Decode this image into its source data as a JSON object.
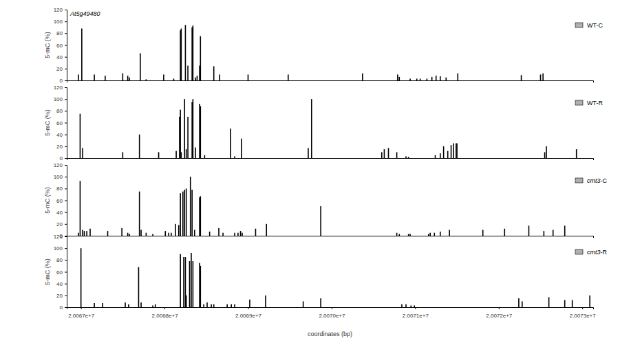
{
  "chart_data": [
    {
      "type": "bar",
      "annotation": "At5g49480",
      "ylabel": "5-mC (%)",
      "xlim": [
        20066830,
        20073130
      ],
      "ylim": [
        0,
        120
      ],
      "yticks": [
        0,
        20,
        40,
        60,
        80,
        100,
        120
      ],
      "tick_labels": "y",
      "legend": "upper right",
      "x": [
        20066970,
        20067010,
        20067160,
        20067290,
        20067500,
        20067560,
        20067580,
        20067710,
        20067780,
        20067990,
        20068110,
        20068190,
        20068200,
        20068250,
        20068280,
        20068330,
        20068340,
        20068370,
        20068390,
        20068420,
        20068430,
        20068590,
        20068660,
        20069000,
        20069480,
        20070370,
        20070790,
        20070810,
        20070940,
        20071020,
        20071060,
        20071140,
        20071200,
        20071250,
        20071300,
        20071370,
        20071510,
        20072270,
        20072500,
        20072530
      ],
      "series": [
        {
          "name": "WT-C",
          "color": "#000000",
          "values": [
            10,
            88,
            10,
            8,
            12,
            8,
            5,
            46,
            2,
            10,
            3,
            85,
            88,
            94,
            25,
            90,
            93,
            5,
            8,
            25,
            75,
            24,
            10,
            10,
            10,
            12,
            10,
            6,
            3,
            3,
            3,
            3,
            6,
            8,
            7,
            5,
            12,
            9,
            10,
            12
          ]
        }
      ]
    },
    {
      "type": "bar",
      "ylabel": "5-mC (%)",
      "xlim": [
        20066830,
        20073130
      ],
      "ylim": [
        0,
        120
      ],
      "yticks": [
        0,
        20,
        40,
        60,
        80,
        100,
        120
      ],
      "tick_labels": "y",
      "legend": "upper right",
      "x": [
        20066990,
        20067020,
        20067500,
        20067700,
        20067930,
        20068140,
        20068180,
        20068190,
        20068200,
        20068240,
        20068260,
        20068280,
        20068330,
        20068340,
        20068370,
        20068420,
        20068430,
        20068480,
        20068790,
        20068840,
        20068920,
        20069720,
        20069760,
        20070600,
        20070630,
        20070680,
        20070780,
        20070890,
        20070920,
        20071240,
        20071300,
        20071340,
        20071390,
        20071430,
        20071460,
        20071490,
        20071500,
        20072550,
        20072570,
        20072930
      ],
      "series": [
        {
          "name": "WT-R",
          "color": "#000000",
          "values": [
            75,
            17,
            10,
            40,
            10,
            12,
            70,
            82,
            10,
            100,
            15,
            70,
            95,
            100,
            18,
            92,
            88,
            5,
            50,
            3,
            33,
            17,
            100,
            10,
            15,
            17,
            10,
            3,
            2,
            5,
            8,
            20,
            12,
            22,
            25,
            25,
            25,
            10,
            20,
            15
          ]
        }
      ]
    },
    {
      "type": "bar",
      "ylabel": "5-mC (%)",
      "xlim": [
        20066830,
        20073130
      ],
      "ylim": [
        0,
        120
      ],
      "yticks": [
        0,
        20,
        40,
        60,
        80,
        100,
        120
      ],
      "tick_labels": "y",
      "legend": "upper right",
      "x": [
        20066970,
        20066990,
        20067020,
        20067040,
        20067070,
        20067110,
        20067320,
        20067490,
        20067560,
        20067580,
        20067700,
        20067720,
        20067780,
        20067860,
        20068010,
        20068050,
        20068080,
        20068130,
        20068170,
        20068190,
        20068220,
        20068240,
        20068260,
        20068310,
        20068330,
        20068360,
        20068420,
        20068430,
        20068540,
        20068650,
        20068700,
        20068840,
        20068880,
        20068910,
        20068930,
        20069090,
        20069220,
        20069870,
        20070780,
        20070810,
        20070920,
        20070940,
        20071160,
        20071180,
        20071230,
        20071300,
        20071410,
        20071810,
        20072070,
        20072360,
        20072540,
        20072650,
        20072790
      ],
      "series": [
        {
          "name": "cmt3-C",
          "color": "#000000",
          "values": [
            5,
            93,
            10,
            8,
            8,
            12,
            8,
            13,
            5,
            3,
            75,
            10,
            5,
            3,
            8,
            5,
            5,
            20,
            18,
            72,
            75,
            78,
            80,
            100,
            78,
            10,
            65,
            67,
            7,
            13,
            5,
            5,
            5,
            8,
            5,
            12,
            20,
            50,
            5,
            3,
            3,
            3,
            3,
            5,
            5,
            7,
            10,
            10,
            12,
            17,
            8,
            10,
            17
          ]
        }
      ]
    },
    {
      "type": "bar",
      "ylabel": "5-mC (%)",
      "xlabel": "coordinates (bp)",
      "xlim": [
        20066830,
        20073130
      ],
      "ylim": [
        0,
        120
      ],
      "yticks": [
        0,
        20,
        40,
        60,
        80,
        100,
        120
      ],
      "legend": "upper right",
      "xticks": [
        {
          "value": 20067000,
          "label": "2.0067e+7"
        },
        {
          "value": 20068000,
          "label": "2.0068e+7"
        },
        {
          "value": 20069000,
          "label": "2.0069e+7"
        },
        {
          "value": 20070000,
          "label": "2.0070e+7"
        },
        {
          "value": 20071000,
          "label": "2.0071e+7"
        },
        {
          "value": 20072000,
          "label": "2.0072e+7"
        },
        {
          "value": 20073000,
          "label": "2.0073e+7"
        }
      ],
      "x": [
        20067000,
        20067160,
        20067260,
        20067530,
        20067570,
        20067690,
        20067720,
        20067860,
        20067890,
        20068190,
        20068230,
        20068250,
        20068260,
        20068300,
        20068320,
        20068340,
        20068420,
        20068430,
        20068470,
        20068510,
        20068560,
        20068590,
        20068750,
        20068800,
        20068840,
        20069020,
        20069210,
        20069660,
        20069870,
        20070840,
        20070890,
        20070950,
        20070990,
        20072240,
        20072280,
        20072600,
        20072790,
        20072880,
        20073090
      ],
      "series": [
        {
          "name": "cmt3-R",
          "color": "#000000",
          "values": [
            100,
            7,
            7,
            8,
            5,
            68,
            8,
            3,
            5,
            90,
            85,
            85,
            20,
            78,
            92,
            78,
            75,
            70,
            5,
            8,
            5,
            5,
            5,
            5,
            5,
            13,
            20,
            10,
            15,
            5,
            5,
            3,
            3,
            15,
            10,
            17,
            12,
            12,
            20
          ]
        }
      ]
    }
  ]
}
